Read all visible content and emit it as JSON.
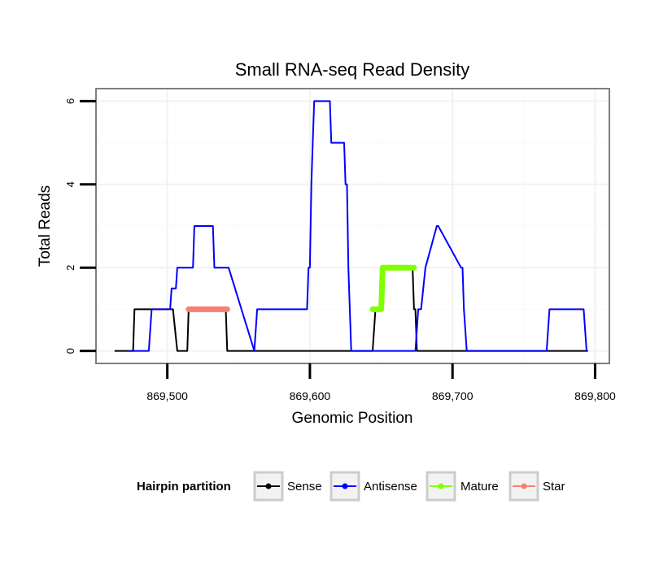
{
  "chart_data": {
    "type": "line",
    "title": "Small RNA-seq Read Density",
    "xlabel": "Genomic Position",
    "ylabel": "Total Reads",
    "xlim": [
      869450,
      869810
    ],
    "ylim": [
      -0.3,
      6.3
    ],
    "x_ticks": [
      869500,
      869600,
      869700,
      869800
    ],
    "x_tick_labels": [
      "869,500",
      "869,600",
      "869,700",
      "869,800"
    ],
    "y_ticks": [
      0,
      2,
      4,
      6
    ],
    "y_tick_labels": [
      "0",
      "2",
      "4",
      "6"
    ],
    "grid": true,
    "legend": {
      "title": "Hairpin partition",
      "placement": "bottom",
      "labels": [
        "Sense",
        "Antisense",
        "Mature",
        "Star"
      ]
    },
    "series": [
      {
        "name": "Sense",
        "color": "#000000",
        "width": 2,
        "x": [
          869463,
          869476,
          869477,
          869504,
          869507,
          869514,
          869515,
          869541,
          869542,
          869644,
          869646,
          869649,
          869650,
          869672,
          869673,
          869674,
          869675,
          869795
        ],
        "y": [
          0,
          0,
          1,
          1,
          0,
          0,
          1,
          1,
          0,
          0,
          1,
          1,
          2,
          2,
          1,
          1,
          0,
          0
        ]
      },
      {
        "name": "Antisense",
        "color": "#0000ff",
        "width": 2,
        "x": [
          869473,
          869487,
          869489,
          869502,
          869503,
          869506,
          869507,
          869518,
          869519,
          869532,
          869533,
          869543,
          869561,
          869563,
          869598,
          869599,
          869600,
          869601,
          869602,
          869603,
          869604,
          869614,
          869615,
          869624,
          869625,
          869626,
          869627,
          869629,
          869631,
          869674,
          869676,
          869678,
          869681,
          869689,
          869690,
          869706,
          869707,
          869708,
          869710,
          869766,
          869768,
          869792,
          869794
        ],
        "y": [
          0,
          0,
          1,
          1,
          1.5,
          1.5,
          2,
          2,
          3,
          3,
          2,
          2,
          0,
          1,
          1,
          2,
          2,
          4,
          5,
          6,
          6,
          6,
          5,
          5,
          4,
          4,
          2,
          0,
          0,
          0,
          1,
          1,
          2,
          3,
          3,
          2,
          2,
          1,
          0,
          0,
          1,
          1,
          0
        ]
      },
      {
        "name": "Mature",
        "color": "#7fff00",
        "width": 7,
        "x": [
          869644,
          869650,
          869651,
          869673
        ],
        "y": [
          1,
          1,
          2,
          2
        ]
      },
      {
        "name": "Star",
        "color": "#f88070",
        "width": 7,
        "x": [
          869515,
          869542
        ],
        "y": [
          1,
          1
        ]
      }
    ]
  }
}
